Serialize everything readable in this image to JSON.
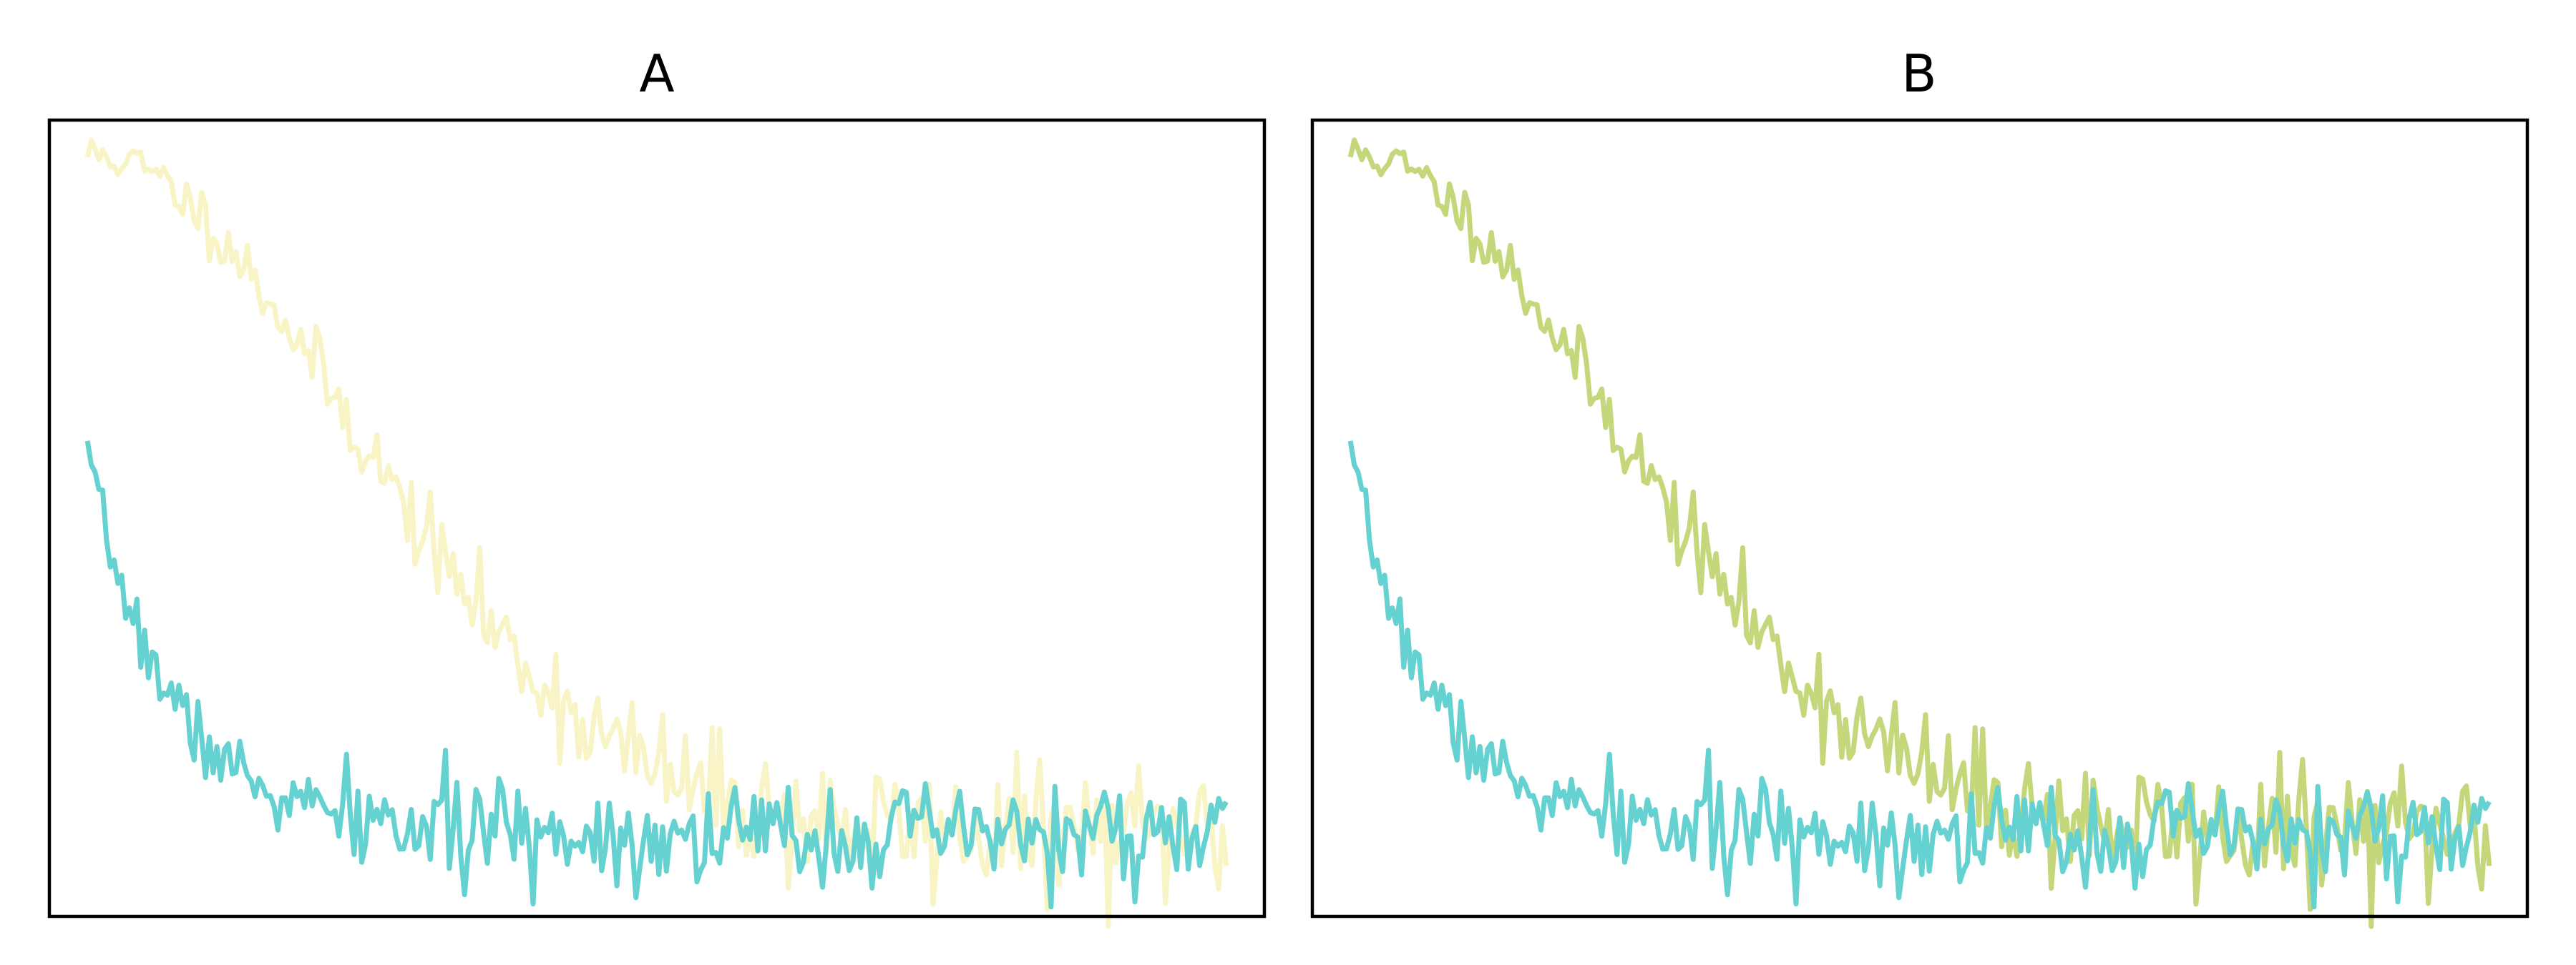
{
  "chart_data": [
    {
      "type": "line",
      "title": "A",
      "xlabel": "",
      "ylabel": "",
      "xlim": [
        -10,
        309
      ],
      "ylim": [
        -0.12,
        1.05
      ],
      "grid": false,
      "axes_ticks": false,
      "series": [
        {
          "color": "#f4ea8e",
          "opacity": 0.5,
          "kind": "slow-decay",
          "start": 1.0,
          "noise": 0.02,
          "seed": 11
        },
        {
          "color": "#66d1d1",
          "opacity": 1.0,
          "kind": "fast-decay",
          "start": 0.55,
          "noise": 0.022,
          "seed": 7
        }
      ]
    },
    {
      "type": "line",
      "title": "B",
      "xlabel": "",
      "ylabel": "",
      "xlim": [
        -10,
        309
      ],
      "ylim": [
        -0.12,
        1.05
      ],
      "grid": false,
      "axes_ticks": false,
      "series": [
        {
          "color": "#c4d77a",
          "opacity": 1.0,
          "kind": "slow-decay",
          "start": 1.0,
          "noise": 0.02,
          "seed": 11
        },
        {
          "color": "#66d1d1",
          "opacity": 1.0,
          "kind": "fast-decay",
          "start": 0.55,
          "noise": 0.022,
          "seed": 7
        }
      ]
    }
  ]
}
